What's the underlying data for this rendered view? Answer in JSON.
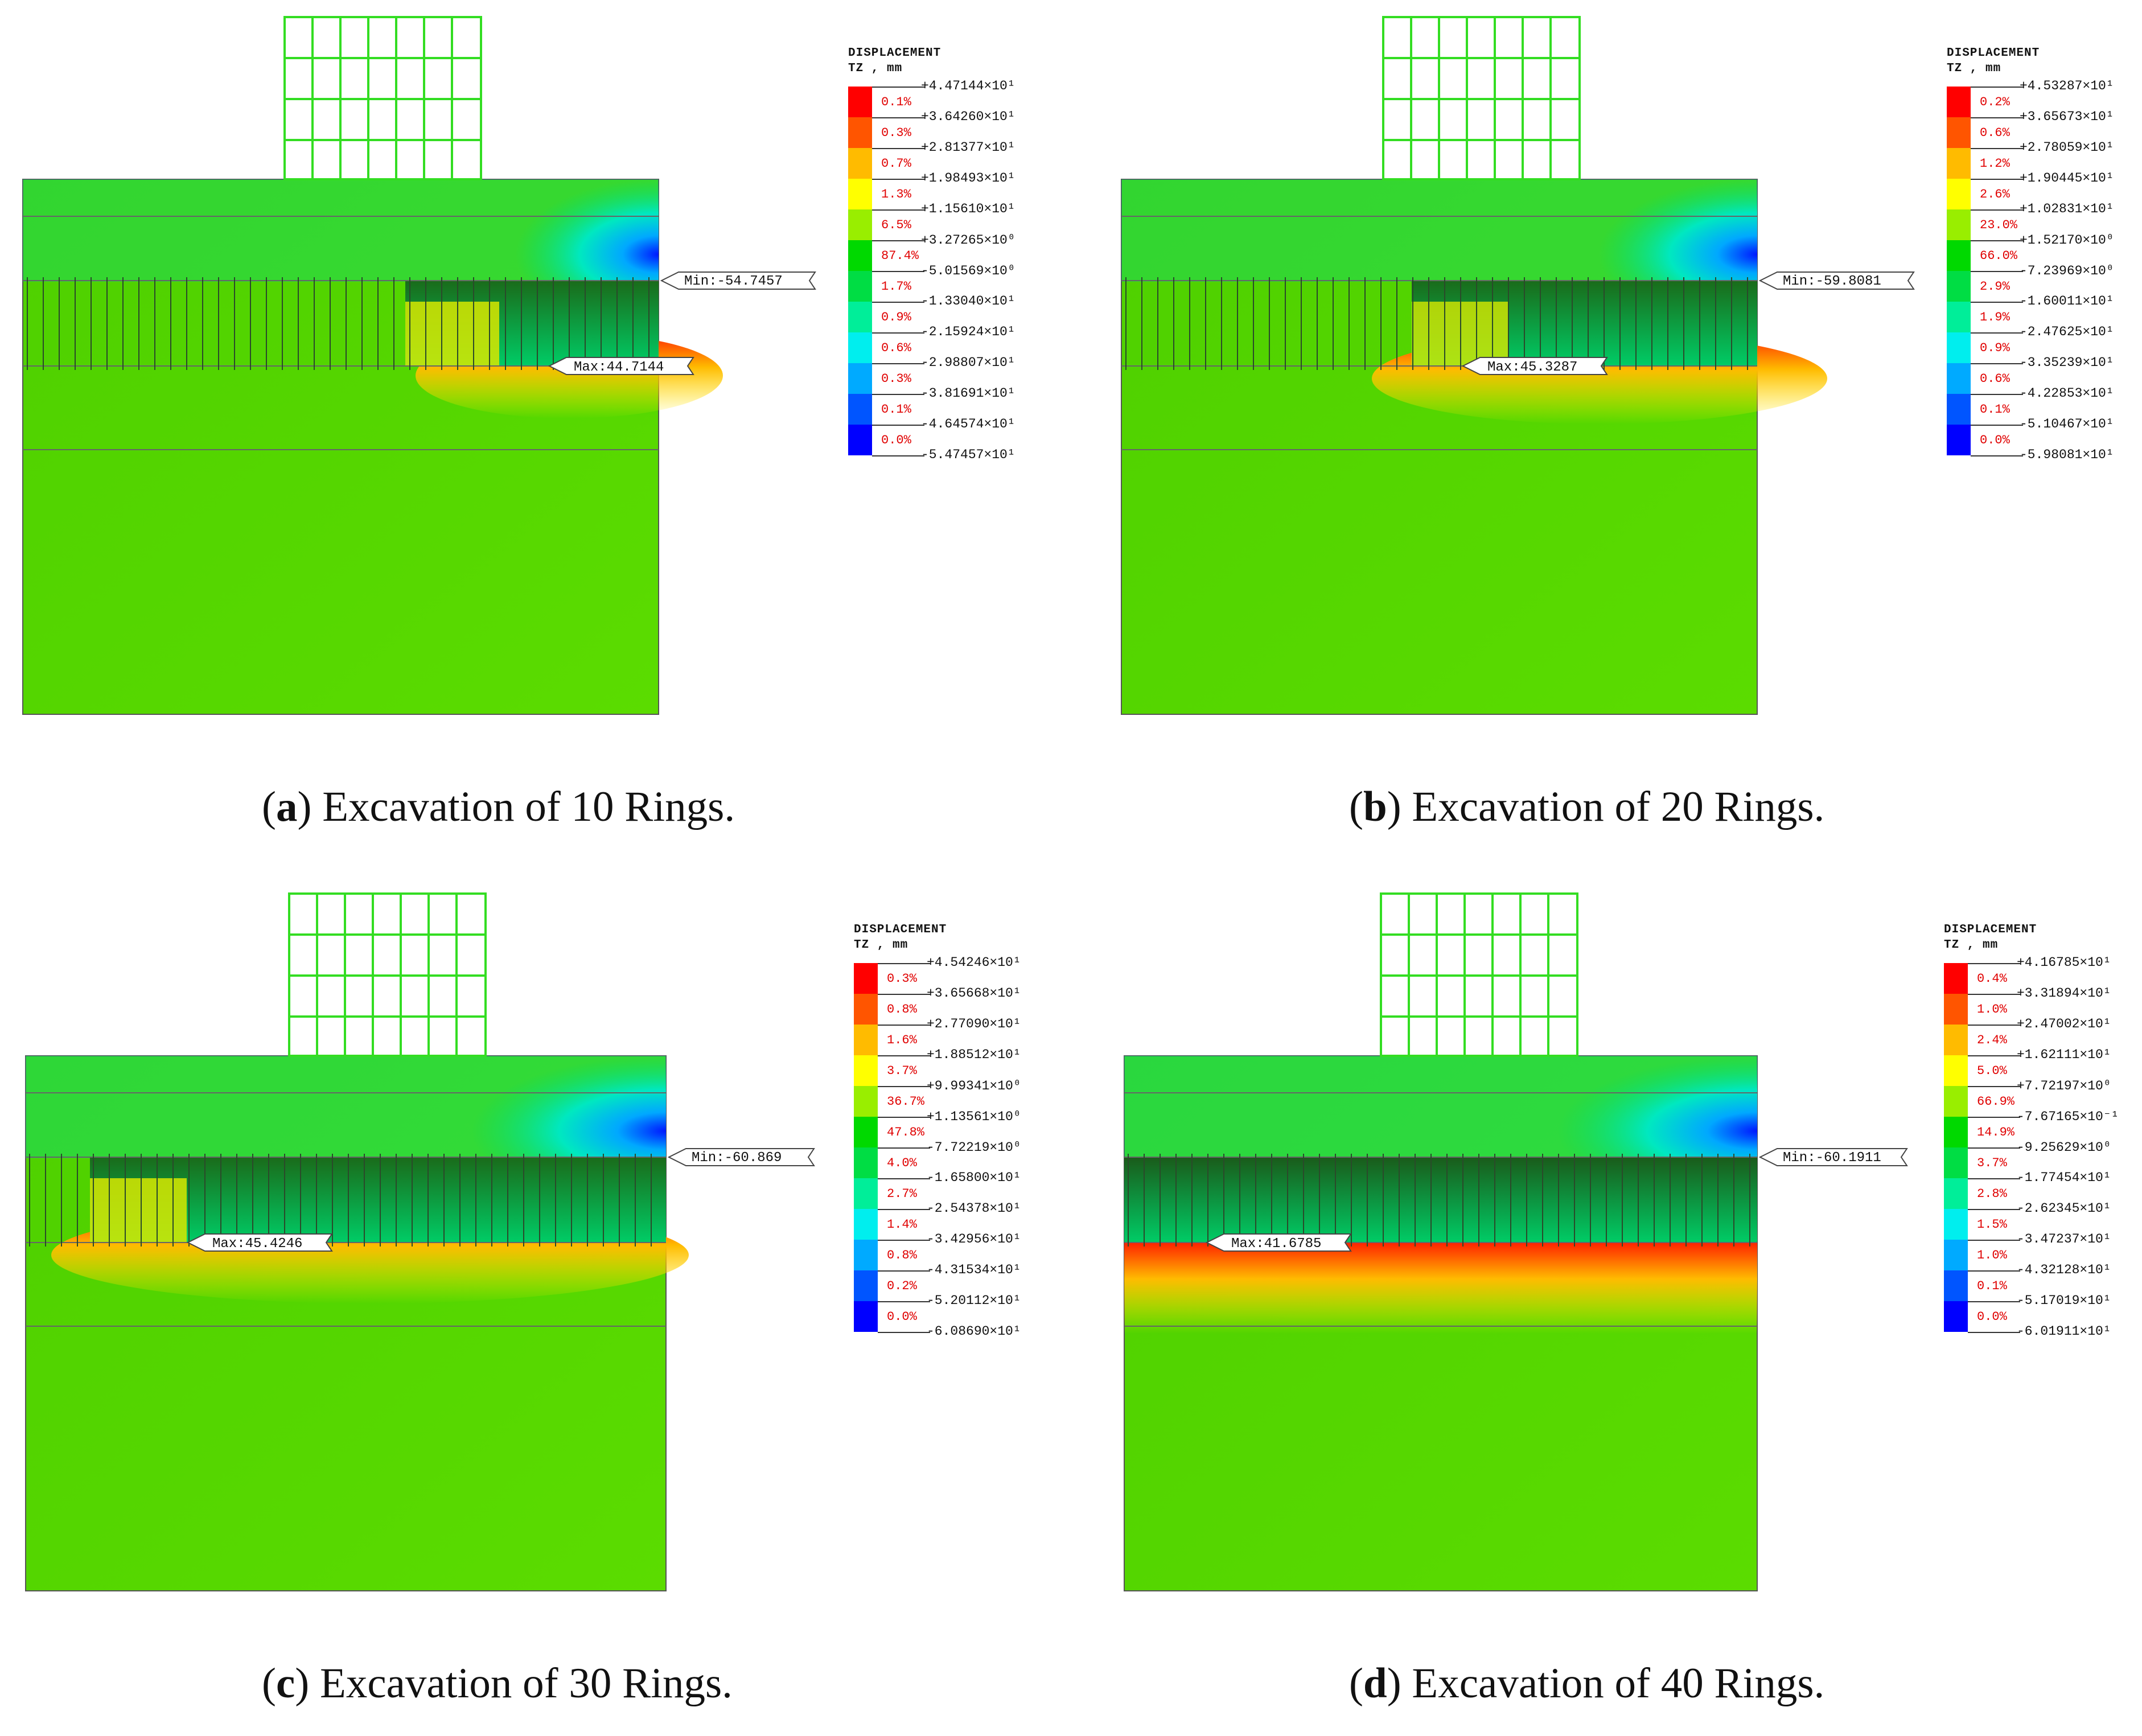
{
  "legend_header": {
    "line1": "DISPLACEMENT",
    "line2": "TZ , mm"
  },
  "colors": [
    "#ff0000",
    "#ff5500",
    "#ffbb00",
    "#ffff00",
    "#99ee00",
    "#00d900",
    "#00dd44",
    "#00ee99",
    "#00eeee",
    "#00aaff",
    "#0055ff",
    "#0000ff"
  ],
  "panels": [
    {
      "caption_letter": "a",
      "caption_text": ") Excavation of 10 Rings.",
      "min_label": "Min:-54.7457",
      "max_label": "Max:44.7144",
      "legend_values": [
        "+4.47144×10¹",
        "+3.64260×10¹",
        "+2.81377×10¹",
        "+1.98493×10¹",
        "+1.15610×10¹",
        "+3.27265×10⁰",
        "-5.01569×10⁰",
        "-1.33040×10¹",
        "-2.15924×10¹",
        "-2.98807×10¹",
        "-3.81691×10¹",
        "-4.64574×10¹",
        "-5.47457×10¹"
      ],
      "legend_percents": [
        "0.1%",
        "0.3%",
        "0.7%",
        "1.3%",
        "6.5%",
        "87.4%",
        "1.7%",
        "0.9%",
        "0.6%",
        "0.3%",
        "0.1%",
        "0.0%"
      ]
    },
    {
      "caption_letter": "b",
      "caption_text": ") Excavation of 20 Rings.",
      "min_label": "Min:-59.8081",
      "max_label": "Max:45.3287",
      "legend_values": [
        "+4.53287×10¹",
        "+3.65673×10¹",
        "+2.78059×10¹",
        "+1.90445×10¹",
        "+1.02831×10¹",
        "+1.52170×10⁰",
        "-7.23969×10⁰",
        "-1.60011×10¹",
        "-2.47625×10¹",
        "-3.35239×10¹",
        "-4.22853×10¹",
        "-5.10467×10¹",
        "-5.98081×10¹"
      ],
      "legend_percents": [
        "0.2%",
        "0.6%",
        "1.2%",
        "2.6%",
        "23.0%",
        "66.0%",
        "2.9%",
        "1.9%",
        "0.9%",
        "0.6%",
        "0.1%",
        "0.0%"
      ]
    },
    {
      "caption_letter": "c",
      "caption_text": ") Excavation of 30 Rings.",
      "min_label": "Min:-60.869",
      "max_label": "Max:45.4246",
      "legend_values": [
        "+4.54246×10¹",
        "+3.65668×10¹",
        "+2.77090×10¹",
        "+1.88512×10¹",
        "+9.99341×10⁰",
        "+1.13561×10⁰",
        "-7.72219×10⁰",
        "-1.65800×10¹",
        "-2.54378×10¹",
        "-3.42956×10¹",
        "-4.31534×10¹",
        "-5.20112×10¹",
        "-6.08690×10¹"
      ],
      "legend_percents": [
        "0.3%",
        "0.8%",
        "1.6%",
        "3.7%",
        "36.7%",
        "47.8%",
        "4.0%",
        "2.7%",
        "1.4%",
        "0.8%",
        "0.2%",
        "0.0%"
      ]
    },
    {
      "caption_letter": "d",
      "caption_text": ") Excavation of 40 Rings.",
      "min_label": "Min:-60.1911",
      "max_label": "Max:41.6785",
      "legend_values": [
        "+4.16785×10¹",
        "+3.31894×10¹",
        "+2.47002×10¹",
        "+1.62111×10¹",
        "+7.72197×10⁰",
        "-7.67165×10⁻¹",
        "-9.25629×10⁰",
        "-1.77454×10¹",
        "-2.62345×10¹",
        "-3.47237×10¹",
        "-4.32128×10¹",
        "-5.17019×10¹",
        "-6.01911×10¹"
      ],
      "legend_percents": [
        "0.4%",
        "1.0%",
        "2.4%",
        "5.0%",
        "66.9%",
        "14.9%",
        "3.7%",
        "2.8%",
        "1.5%",
        "1.0%",
        "0.1%",
        "0.0%"
      ]
    }
  ]
}
